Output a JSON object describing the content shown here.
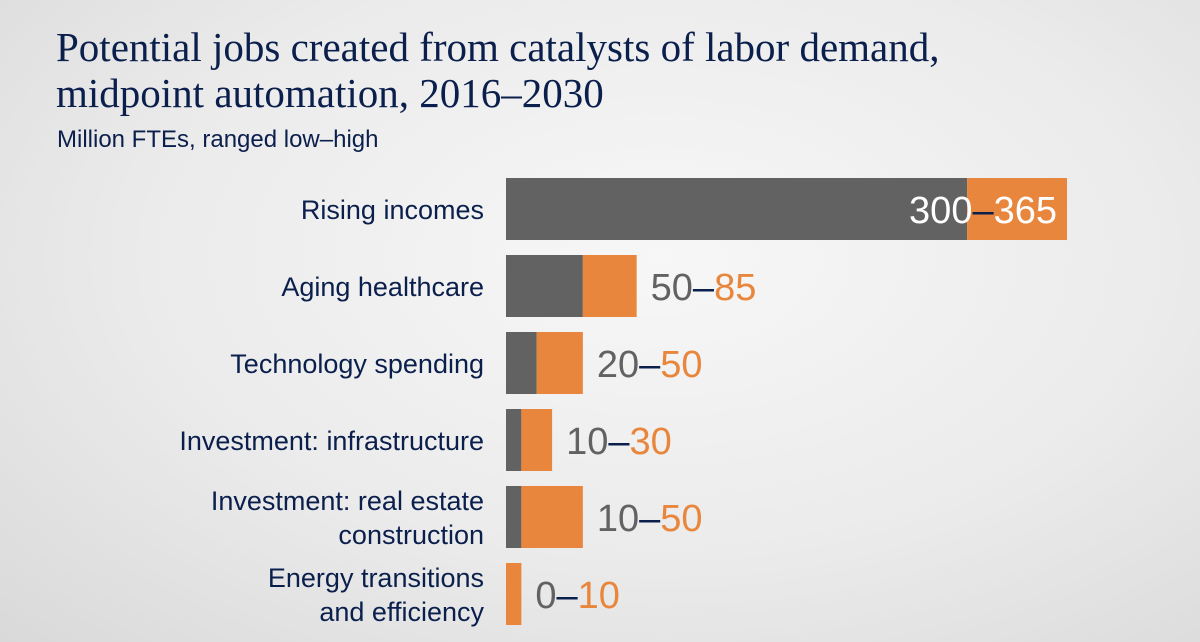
{
  "title_line1": "Potential jobs created from catalysts of labor demand,",
  "title_line2": "midpoint automation, 2016–2030",
  "subtitle": "Million FTEs, ranged low–high",
  "colors": {
    "low": "#626262",
    "high": "#e8863d",
    "dash": "#0b1f4d",
    "text": "#0b1f4d"
  },
  "chart_data": {
    "type": "bar",
    "orientation": "horizontal",
    "stacked_range": true,
    "title": "Potential jobs created from catalysts of labor demand, midpoint automation, 2016–2030",
    "unit": "Million FTEs, ranged low–high",
    "categories": [
      [
        "Rising incomes"
      ],
      [
        "Aging healthcare"
      ],
      [
        "Technology spending"
      ],
      [
        "Investment: infrastructure"
      ],
      [
        "Investment: real estate",
        "construction"
      ],
      [
        "Energy transitions",
        "and efficiency"
      ]
    ],
    "series": [
      {
        "name": "low",
        "values": [
          300,
          50,
          20,
          10,
          10,
          0
        ]
      },
      {
        "name": "high",
        "values": [
          365,
          85,
          50,
          30,
          50,
          10
        ]
      }
    ],
    "value_labels": [
      {
        "low": "300",
        "dash": "–",
        "high": "365"
      },
      {
        "low": "50",
        "dash": "–",
        "high": "85"
      },
      {
        "low": "20",
        "dash": "–",
        "high": "50"
      },
      {
        "low": "10",
        "dash": "–",
        "high": "30"
      },
      {
        "low": "10",
        "dash": "–",
        "high": "50"
      },
      {
        "low": "0",
        "dash": "–",
        "high": "10"
      }
    ]
  }
}
